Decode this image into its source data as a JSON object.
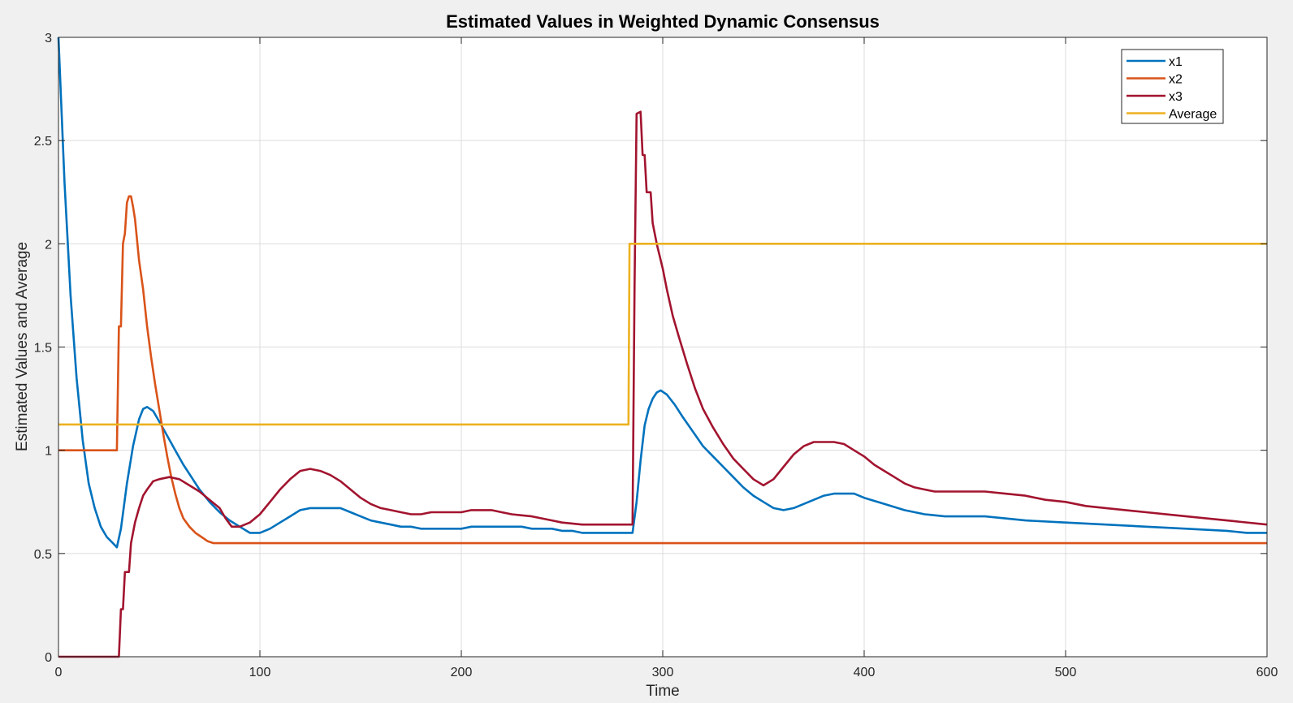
{
  "chart_data": {
    "type": "line",
    "title": "Estimated Values in Weighted Dynamic Consensus",
    "xlabel": "Time",
    "ylabel": "Estimated Values and Average",
    "xlim": [
      0,
      600
    ],
    "ylim": [
      0,
      3
    ],
    "xticks": [
      0,
      100,
      200,
      300,
      400,
      500,
      600
    ],
    "yticks": [
      0,
      0.5,
      1,
      1.5,
      2,
      2.5,
      3
    ],
    "xtick_labels": [
      "0",
      "100",
      "200",
      "300",
      "400",
      "500",
      "600"
    ],
    "ytick_labels": [
      "0",
      "0.5",
      "1",
      "1.5",
      "2",
      "2.5",
      "3"
    ],
    "grid": true,
    "legend_position": "top-right",
    "series": [
      {
        "name": "x1",
        "color": "#0072BD",
        "points": [
          [
            0,
            3.0
          ],
          [
            3,
            2.3
          ],
          [
            6,
            1.75
          ],
          [
            9,
            1.35
          ],
          [
            12,
            1.05
          ],
          [
            15,
            0.84
          ],
          [
            18,
            0.72
          ],
          [
            21,
            0.63
          ],
          [
            24,
            0.58
          ],
          [
            27,
            0.55
          ],
          [
            29,
            0.53
          ],
          [
            31,
            0.62
          ],
          [
            34,
            0.84
          ],
          [
            37,
            1.02
          ],
          [
            40,
            1.15
          ],
          [
            42,
            1.2
          ],
          [
            44,
            1.21
          ],
          [
            47,
            1.19
          ],
          [
            50,
            1.14
          ],
          [
            54,
            1.07
          ],
          [
            58,
            1.0
          ],
          [
            62,
            0.93
          ],
          [
            66,
            0.87
          ],
          [
            70,
            0.81
          ],
          [
            75,
            0.75
          ],
          [
            80,
            0.7
          ],
          [
            85,
            0.66
          ],
          [
            90,
            0.63
          ],
          [
            95,
            0.6
          ],
          [
            100,
            0.6
          ],
          [
            105,
            0.62
          ],
          [
            110,
            0.65
          ],
          [
            115,
            0.68
          ],
          [
            120,
            0.71
          ],
          [
            125,
            0.72
          ],
          [
            140,
            0.72
          ],
          [
            145,
            0.7
          ],
          [
            150,
            0.68
          ],
          [
            155,
            0.66
          ],
          [
            160,
            0.65
          ],
          [
            165,
            0.64
          ],
          [
            170,
            0.63
          ],
          [
            175,
            0.63
          ],
          [
            180,
            0.62
          ],
          [
            200,
            0.62
          ],
          [
            205,
            0.63
          ],
          [
            230,
            0.63
          ],
          [
            235,
            0.62
          ],
          [
            245,
            0.62
          ],
          [
            250,
            0.61
          ],
          [
            255,
            0.61
          ],
          [
            260,
            0.6
          ],
          [
            285,
            0.6
          ],
          [
            287,
            0.75
          ],
          [
            289,
            0.95
          ],
          [
            291,
            1.12
          ],
          [
            293,
            1.2
          ],
          [
            295,
            1.25
          ],
          [
            297,
            1.28
          ],
          [
            299,
            1.29
          ],
          [
            302,
            1.27
          ],
          [
            306,
            1.22
          ],
          [
            310,
            1.16
          ],
          [
            315,
            1.09
          ],
          [
            320,
            1.02
          ],
          [
            325,
            0.97
          ],
          [
            330,
            0.92
          ],
          [
            335,
            0.87
          ],
          [
            340,
            0.82
          ],
          [
            345,
            0.78
          ],
          [
            350,
            0.75
          ],
          [
            355,
            0.72
          ],
          [
            360,
            0.71
          ],
          [
            365,
            0.72
          ],
          [
            370,
            0.74
          ],
          [
            375,
            0.76
          ],
          [
            380,
            0.78
          ],
          [
            385,
            0.79
          ],
          [
            395,
            0.79
          ],
          [
            400,
            0.77
          ],
          [
            410,
            0.74
          ],
          [
            420,
            0.71
          ],
          [
            430,
            0.69
          ],
          [
            440,
            0.68
          ],
          [
            460,
            0.68
          ],
          [
            470,
            0.67
          ],
          [
            480,
            0.66
          ],
          [
            500,
            0.65
          ],
          [
            520,
            0.64
          ],
          [
            540,
            0.63
          ],
          [
            560,
            0.62
          ],
          [
            580,
            0.61
          ],
          [
            590,
            0.6
          ],
          [
            600,
            0.6
          ]
        ]
      },
      {
        "name": "x2",
        "color": "#D95319",
        "points": [
          [
            0,
            1.0
          ],
          [
            28,
            1.0
          ],
          [
            29,
            1.0
          ],
          [
            30,
            1.6
          ],
          [
            31,
            1.6
          ],
          [
            32,
            2.0
          ],
          [
            33,
            2.05
          ],
          [
            34,
            2.2
          ],
          [
            35,
            2.23
          ],
          [
            36,
            2.23
          ],
          [
            37,
            2.18
          ],
          [
            38,
            2.12
          ],
          [
            39,
            2.02
          ],
          [
            40,
            1.92
          ],
          [
            42,
            1.78
          ],
          [
            44,
            1.6
          ],
          [
            46,
            1.45
          ],
          [
            48,
            1.32
          ],
          [
            50,
            1.2
          ],
          [
            52,
            1.08
          ],
          [
            54,
            0.97
          ],
          [
            56,
            0.87
          ],
          [
            58,
            0.79
          ],
          [
            60,
            0.72
          ],
          [
            62,
            0.67
          ],
          [
            65,
            0.63
          ],
          [
            68,
            0.6
          ],
          [
            71,
            0.58
          ],
          [
            74,
            0.56
          ],
          [
            77,
            0.55
          ],
          [
            600,
            0.55
          ]
        ]
      },
      {
        "name": "x3",
        "color": "#A2142F",
        "points": [
          [
            0,
            0.0
          ],
          [
            29,
            0.0
          ],
          [
            30,
            0.0
          ],
          [
            31,
            0.23
          ],
          [
            32,
            0.23
          ],
          [
            33,
            0.41
          ],
          [
            35,
            0.41
          ],
          [
            36,
            0.55
          ],
          [
            38,
            0.65
          ],
          [
            40,
            0.72
          ],
          [
            42,
            0.78
          ],
          [
            44,
            0.81
          ],
          [
            47,
            0.85
          ],
          [
            50,
            0.86
          ],
          [
            55,
            0.87
          ],
          [
            60,
            0.86
          ],
          [
            65,
            0.83
          ],
          [
            70,
            0.8
          ],
          [
            75,
            0.76
          ],
          [
            80,
            0.72
          ],
          [
            83,
            0.67
          ],
          [
            86,
            0.63
          ],
          [
            90,
            0.63
          ],
          [
            95,
            0.65
          ],
          [
            100,
            0.69
          ],
          [
            105,
            0.75
          ],
          [
            110,
            0.81
          ],
          [
            115,
            0.86
          ],
          [
            120,
            0.9
          ],
          [
            125,
            0.91
          ],
          [
            130,
            0.9
          ],
          [
            135,
            0.88
          ],
          [
            140,
            0.85
          ],
          [
            145,
            0.81
          ],
          [
            150,
            0.77
          ],
          [
            155,
            0.74
          ],
          [
            160,
            0.72
          ],
          [
            165,
            0.71
          ],
          [
            170,
            0.7
          ],
          [
            175,
            0.69
          ],
          [
            180,
            0.69
          ],
          [
            185,
            0.7
          ],
          [
            200,
            0.7
          ],
          [
            205,
            0.71
          ],
          [
            215,
            0.71
          ],
          [
            220,
            0.7
          ],
          [
            225,
            0.69
          ],
          [
            235,
            0.68
          ],
          [
            240,
            0.67
          ],
          [
            245,
            0.66
          ],
          [
            250,
            0.65
          ],
          [
            260,
            0.64
          ],
          [
            285,
            0.64
          ],
          [
            286,
            1.8
          ],
          [
            287,
            2.63
          ],
          [
            289,
            2.64
          ],
          [
            290,
            2.43
          ],
          [
            291,
            2.43
          ],
          [
            292,
            2.25
          ],
          [
            294,
            2.25
          ],
          [
            295,
            2.1
          ],
          [
            297,
            2.0
          ],
          [
            300,
            1.88
          ],
          [
            302,
            1.78
          ],
          [
            305,
            1.65
          ],
          [
            308,
            1.55
          ],
          [
            312,
            1.42
          ],
          [
            316,
            1.3
          ],
          [
            320,
            1.2
          ],
          [
            325,
            1.11
          ],
          [
            330,
            1.03
          ],
          [
            335,
            0.96
          ],
          [
            340,
            0.91
          ],
          [
            345,
            0.86
          ],
          [
            350,
            0.83
          ],
          [
            355,
            0.86
          ],
          [
            360,
            0.92
          ],
          [
            365,
            0.98
          ],
          [
            370,
            1.02
          ],
          [
            375,
            1.04
          ],
          [
            385,
            1.04
          ],
          [
            390,
            1.03
          ],
          [
            395,
            1.0
          ],
          [
            400,
            0.97
          ],
          [
            405,
            0.93
          ],
          [
            410,
            0.9
          ],
          [
            415,
            0.87
          ],
          [
            420,
            0.84
          ],
          [
            425,
            0.82
          ],
          [
            430,
            0.81
          ],
          [
            435,
            0.8
          ],
          [
            460,
            0.8
          ],
          [
            470,
            0.79
          ],
          [
            480,
            0.78
          ],
          [
            490,
            0.76
          ],
          [
            500,
            0.75
          ],
          [
            510,
            0.73
          ],
          [
            520,
            0.72
          ],
          [
            540,
            0.7
          ],
          [
            560,
            0.68
          ],
          [
            580,
            0.66
          ],
          [
            600,
            0.64
          ]
        ]
      },
      {
        "name": "Average",
        "color": "#EDB120",
        "points": [
          [
            0,
            1.125
          ],
          [
            283,
            1.125
          ],
          [
            283.5,
            2.0
          ],
          [
            600,
            2.0
          ]
        ]
      }
    ]
  }
}
